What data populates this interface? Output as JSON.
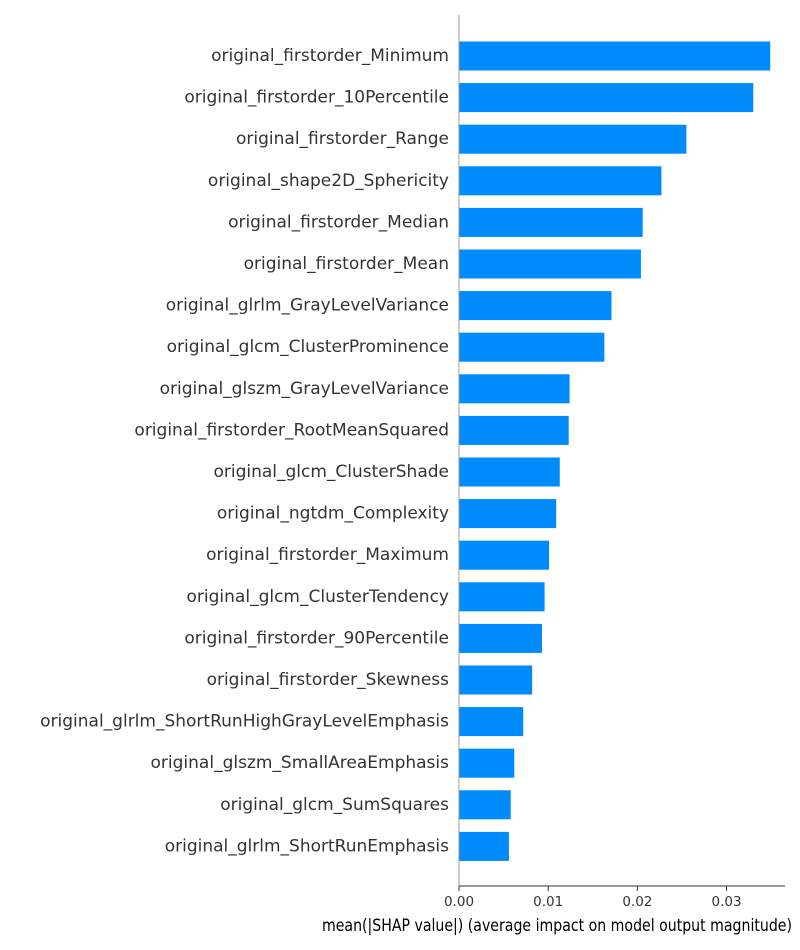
{
  "chart_data": {
    "type": "bar",
    "orientation": "horizontal",
    "title": "",
    "xlabel": "mean(|SHAP value|) (average impact on model output magnitude)",
    "ylabel": "",
    "xlim": [
      0,
      0.0365
    ],
    "xticks": [
      0.0,
      0.01,
      0.02,
      0.03
    ],
    "xtick_labels": [
      "0.00",
      "0.01",
      "0.02",
      "0.03"
    ],
    "grid": false,
    "legend": false,
    "bar_color": "#008bfb",
    "categories": [
      "original_firstorder_Minimum",
      "original_firstorder_10Percentile",
      "original_firstorder_Range",
      "original_shape2D_Sphericity",
      "original_firstorder_Median",
      "original_firstorder_Mean",
      "original_glrlm_GrayLevelVariance",
      "original_glcm_ClusterProminence",
      "original_glszm_GrayLevelVariance",
      "original_firstorder_RootMeanSquared",
      "original_glcm_ClusterShade",
      "original_ngtdm_Complexity",
      "original_firstorder_Maximum",
      "original_glcm_ClusterTendency",
      "original_firstorder_90Percentile",
      "original_firstorder_Skewness",
      "original_glrlm_ShortRunHighGrayLevelEmphasis",
      "original_glszm_SmallAreaEmphasis",
      "original_glcm_SumSquares",
      "original_glrlm_ShortRunEmphasis"
    ],
    "values": [
      0.0349,
      0.033,
      0.0255,
      0.0227,
      0.0206,
      0.0204,
      0.0171,
      0.0163,
      0.0124,
      0.0123,
      0.0113,
      0.0109,
      0.0101,
      0.0096,
      0.0093,
      0.0082,
      0.0072,
      0.0062,
      0.0058,
      0.0056
    ]
  }
}
